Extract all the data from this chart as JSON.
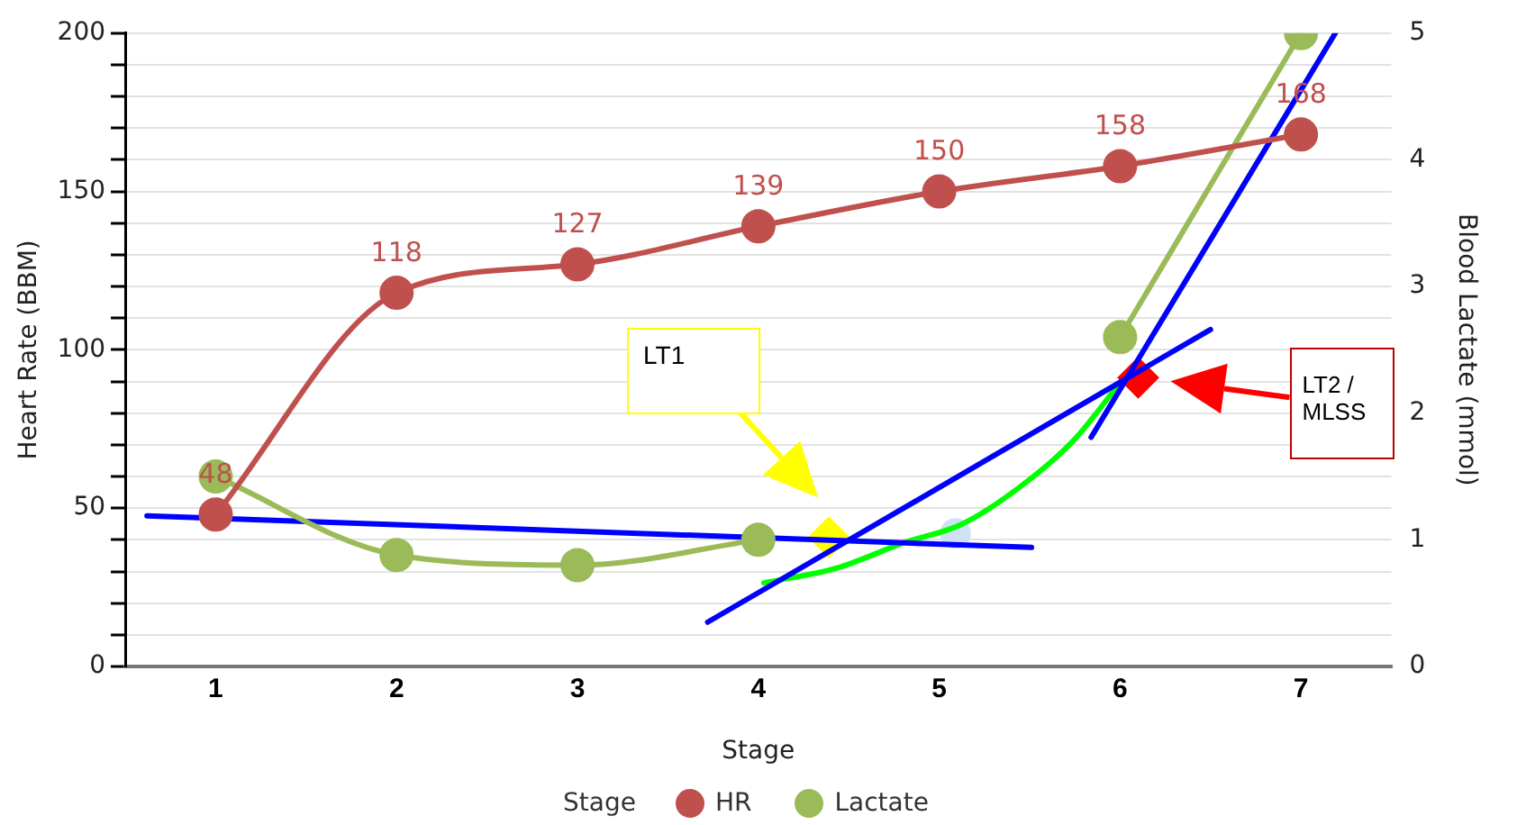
{
  "chart_data": {
    "type": "line",
    "xlabel": "Stage",
    "ylabel": "Heart Rate (BBM)",
    "y2label": "Blood Lactate (mmol)",
    "legend_title": "Stage",
    "legend": "bottom",
    "grid": "y",
    "x": [
      1,
      2,
      3,
      4,
      5,
      6,
      7
    ],
    "xlim": [
      0.5,
      7.5
    ],
    "xticks": [
      1,
      2,
      3,
      4,
      5,
      6,
      7
    ],
    "ylim": [
      0,
      200
    ],
    "yticks": [
      0,
      {
        "value": 10,
        "label": null
      },
      {
        "value": 20,
        "label": null
      },
      {
        "value": 30,
        "label": null
      },
      {
        "value": 40,
        "label": null
      },
      50,
      {
        "value": 60,
        "label": null
      },
      {
        "value": 70,
        "label": null
      },
      {
        "value": 80,
        "label": null
      },
      {
        "value": 90,
        "label": null
      },
      100,
      {
        "value": 110,
        "label": null
      },
      {
        "value": 120,
        "label": null
      },
      {
        "value": 130,
        "label": null
      },
      {
        "value": 140,
        "label": null
      },
      150,
      {
        "value": 160,
        "label": null
      },
      {
        "value": 170,
        "label": null
      },
      {
        "value": 180,
        "label": null
      },
      {
        "value": 190,
        "label": null
      },
      200
    ],
    "y2lim": [
      0,
      5
    ],
    "y2ticks": [
      0,
      1,
      2,
      3,
      4,
      5
    ],
    "marker": "circle",
    "series": [
      {
        "name": "HR",
        "color": "#c0504d",
        "values": [
          48,
          118,
          127,
          139,
          150,
          158,
          168
        ],
        "value_labels": [
          "48",
          "118",
          "127",
          "139",
          "150",
          "158",
          "168"
        ]
      },
      {
        "name": "Lactate",
        "color": "#9bbb59",
        "axis": "y2",
        "values": [
          1.5,
          0.88,
          0.8,
          1.0,
          null,
          2.6,
          5.0
        ]
      },
      {
        "type": "line",
        "color": "#0000ff",
        "axis": "y2",
        "marker": "none",
        "x": [
          0.62,
          5.51
        ],
        "values": [
          1.19,
          0.94
        ]
      },
      {
        "type": "line",
        "color": "#0000ff",
        "axis": "y2",
        "marker": "none",
        "x": [
          3.72,
          6.5
        ],
        "values": [
          0.35,
          2.66
        ]
      },
      {
        "type": "line",
        "color": "#0000ff",
        "axis": "y2",
        "marker": "none",
        "x": [
          5.84,
          7.19
        ],
        "values": [
          1.81,
          5.0
        ]
      },
      {
        "type": "line",
        "color": "#00ff00",
        "axis": "y2",
        "marker": "none",
        "x": [
          4.03,
          4.44,
          4.81,
          5.12,
          5.43,
          5.74,
          6.0
        ],
        "values": [
          0.66,
          0.78,
          0.98,
          1.12,
          1.4,
          1.78,
          2.24
        ]
      },
      {
        "type": "scatter",
        "color": "#ffff00",
        "axis": "y2",
        "marker": "diamond",
        "x": [
          4.39
        ],
        "values": [
          1.02
        ]
      },
      {
        "type": "scatter",
        "color": "#ff0000",
        "axis": "y2",
        "marker": "diamond",
        "x": [
          6.1
        ],
        "values": [
          2.28
        ]
      },
      {
        "type": "scatter",
        "color": "#cfe2f3",
        "axis": "y2",
        "marker": "circle",
        "x": [
          5.09
        ],
        "values": [
          1.05
        ]
      }
    ],
    "annotations": [
      "LT1",
      "LT2 / MLSS"
    ]
  }
}
